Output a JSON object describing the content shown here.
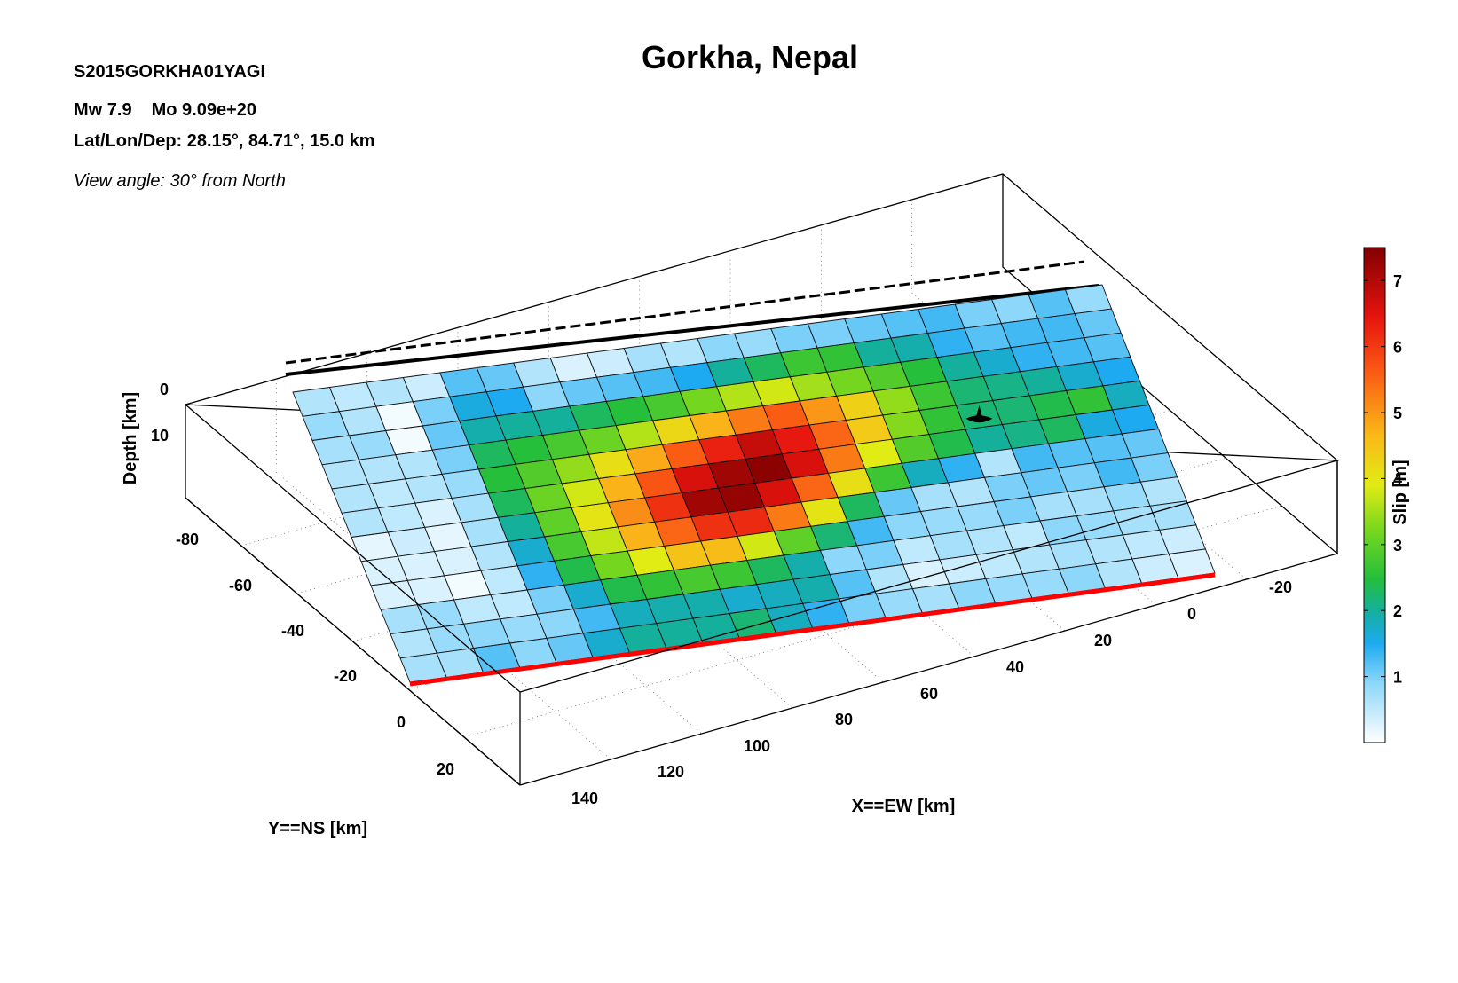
{
  "header": {
    "title": "Gorkha, Nepal",
    "event_id": "S2015GORKHA01YAGI",
    "magnitude": "Mw 7.9",
    "moment": "Mo 9.09e+20",
    "location": "Lat/Lon/Dep: 28.15°, 84.71°, 15.0 km",
    "view_angle": "View angle:  30° from North"
  },
  "chart_data": {
    "type": "heatmap",
    "title": "Gorkha, Nepal",
    "xlabel": "X==EW [km]",
    "ylabel": "Y==NS [km]",
    "zlabel": "Depth [km]",
    "colorbar_label": "Slip [m]",
    "x_ticks": [
      "-20",
      "0",
      "20",
      "40",
      "60",
      "80",
      "100",
      "120",
      "140"
    ],
    "y_ticks": [
      "-80",
      "-60",
      "-40",
      "-20",
      "0",
      "20"
    ],
    "z_ticks": [
      "0",
      "10"
    ],
    "colorbar_ticks": [
      "1",
      "2",
      "3",
      "4",
      "5",
      "6",
      "7"
    ],
    "colorbar_range": [
      0,
      7.5
    ],
    "grid": true,
    "hypocenter": {
      "row": 4,
      "col": 17
    },
    "slip": [
      [
        0.6,
        0.5,
        0.6,
        0.4,
        1.2,
        1.1,
        0.6,
        0.3,
        0.4,
        0.7,
        0.6,
        0.9,
        0.8,
        1.0,
        1.0,
        1.1,
        1.2,
        1.3,
        1.0,
        0.9,
        1.2,
        0.8
      ],
      [
        0.8,
        0.6,
        0.1,
        1.0,
        1.6,
        1.5,
        0.9,
        1.1,
        1.2,
        1.3,
        1.5,
        2.0,
        2.3,
        2.7,
        2.6,
        2.0,
        1.9,
        1.4,
        1.2,
        1.3,
        1.3,
        1.1
      ],
      [
        0.7,
        0.8,
        0.1,
        1.1,
        1.9,
        2.0,
        2.0,
        2.3,
        2.5,
        2.8,
        3.2,
        3.6,
        3.8,
        3.5,
        3.2,
        2.9,
        2.5,
        2.0,
        1.7,
        1.4,
        1.3,
        1.2
      ],
      [
        0.6,
        0.6,
        0.6,
        1.0,
        2.3,
        2.5,
        2.8,
        3.1,
        3.6,
        4.2,
        4.7,
        5.3,
        5.6,
        5.0,
        4.3,
        3.4,
        2.7,
        2.2,
        2.1,
        2.0,
        1.7,
        1.5
      ],
      [
        0.6,
        0.5,
        0.6,
        0.8,
        2.5,
        2.9,
        3.4,
        4.1,
        4.8,
        5.6,
        6.3,
        6.8,
        6.4,
        5.5,
        4.4,
        3.3,
        2.6,
        2.2,
        2.2,
        2.4,
        2.6,
        1.8
      ],
      [
        0.6,
        0.5,
        0.3,
        0.7,
        2.3,
        3.1,
        3.8,
        4.7,
        5.7,
        6.6,
        7.2,
        7.4,
        6.6,
        5.3,
        3.9,
        2.9,
        2.4,
        2.0,
        2.1,
        2.3,
        1.6,
        1.5
      ],
      [
        0.2,
        0.4,
        0.2,
        0.7,
        2.0,
        3.0,
        4.0,
        5.1,
        6.1,
        7.2,
        7.3,
        6.6,
        5.5,
        4.1,
        2.7,
        1.8,
        1.4,
        0.6,
        1.3,
        1.2,
        1.2,
        1.1
      ],
      [
        0.3,
        0.3,
        0.3,
        0.6,
        1.7,
        2.8,
        3.7,
        4.7,
        5.5,
        6.1,
        6.2,
        5.3,
        4.0,
        2.3,
        1.1,
        0.7,
        0.6,
        1.0,
        1.1,
        1.0,
        1.3,
        1.0
      ],
      [
        0.3,
        0.3,
        0.1,
        0.5,
        1.4,
        2.4,
        3.2,
        3.9,
        4.5,
        4.6,
        3.8,
        3.0,
        2.2,
        1.3,
        0.9,
        0.8,
        0.8,
        1.0,
        0.7,
        0.7,
        0.8,
        0.6
      ],
      [
        0.7,
        0.8,
        0.5,
        0.5,
        1.0,
        1.7,
        2.4,
        2.6,
        2.8,
        2.7,
        2.3,
        1.9,
        0.9,
        1.0,
        0.5,
        0.7,
        0.6,
        0.5,
        0.9,
        0.8,
        0.7,
        0.7
      ],
      [
        0.6,
        0.8,
        0.9,
        0.8,
        0.9,
        1.3,
        1.8,
        1.9,
        1.9,
        1.7,
        1.8,
        1.9,
        1.2,
        0.6,
        0.3,
        0.4,
        0.5,
        0.6,
        0.7,
        0.6,
        0.5,
        0.4
      ],
      [
        0.7,
        0.7,
        1.2,
        0.9,
        1.1,
        1.7,
        2.0,
        2.0,
        2.0,
        2.2,
        1.8,
        1.4,
        1.0,
        0.8,
        0.7,
        0.9,
        0.8,
        0.8,
        0.9,
        0.6,
        0.4,
        0.3
      ]
    ]
  }
}
